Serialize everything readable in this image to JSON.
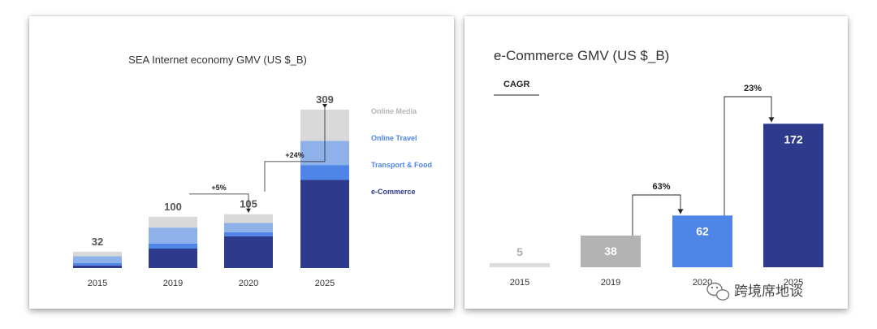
{
  "colors": {
    "ecommerce": "#2e3a8c",
    "transport": "#4f85e6",
    "travel": "#8fb1ea",
    "media": "#d9d9d9",
    "gray_mid": "#b3b3b3",
    "gray_light": "#dcdcdc"
  },
  "chart_data": [
    {
      "type": "bar",
      "stacked": true,
      "title": "SEA Internet economy GMV (US $_B)",
      "categories": [
        "2015",
        "2019",
        "2020",
        "2025"
      ],
      "totals": [
        "32",
        "100",
        "105",
        "309"
      ],
      "series": [
        {
          "name": "e-Commerce",
          "values": [
            5,
            38,
            62,
            172
          ]
        },
        {
          "name": "Transport & Food",
          "values": [
            5,
            10,
            8,
            29
          ]
        },
        {
          "name": "Online Travel",
          "values": [
            13,
            31,
            18,
            47
          ]
        },
        {
          "name": "Online Media",
          "values": [
            9,
            21,
            17,
            61
          ]
        }
      ],
      "growth_labels": [
        "+5%",
        "+24%"
      ],
      "legend_order": [
        "Online Media",
        "Online Travel",
        "Transport & Food",
        "e-Commerce"
      ],
      "legend_position": "right",
      "ylim": [
        0,
        320
      ],
      "grid": false
    },
    {
      "type": "bar",
      "title": "e-Commerce GMV (US $_B)",
      "categories": [
        "2015",
        "2019",
        "2020",
        "2025"
      ],
      "values": [
        5,
        38,
        62,
        172
      ],
      "value_labels": [
        "5",
        "38",
        "62",
        "172"
      ],
      "cagr_label": "CAGR",
      "growth_labels": [
        "63%",
        "23%"
      ],
      "ylim": [
        0,
        185
      ],
      "grid": false
    }
  ],
  "watermark": "跨境席地谈"
}
